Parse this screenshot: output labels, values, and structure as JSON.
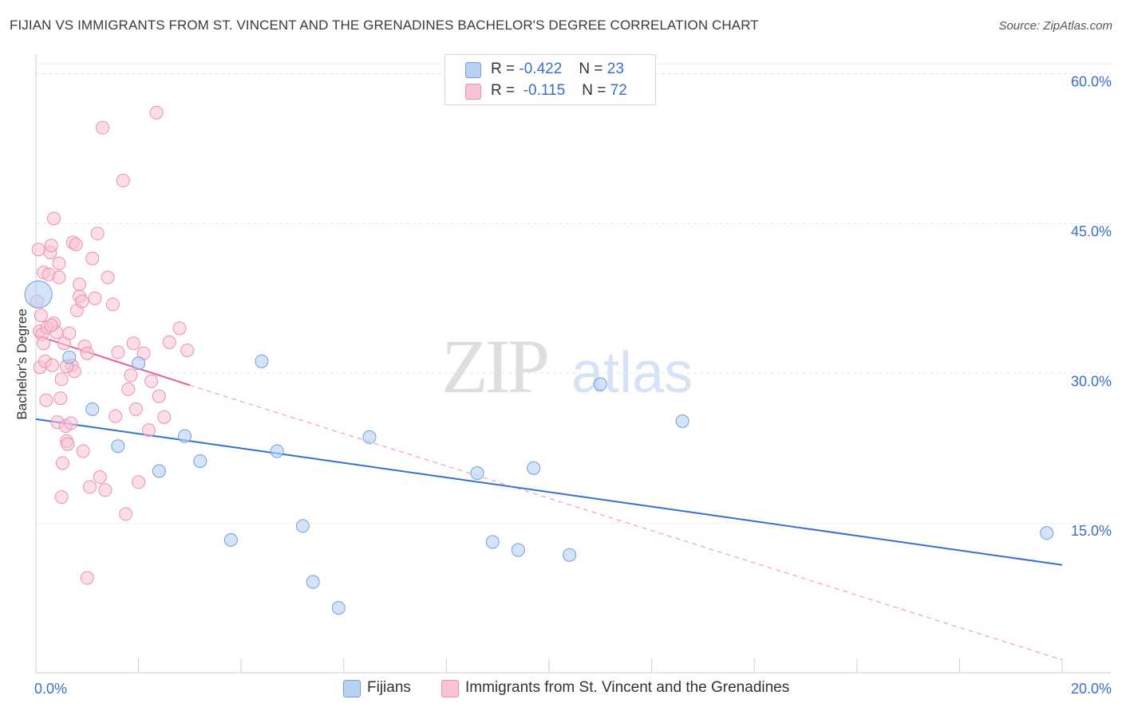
{
  "header": {
    "title": "FIJIAN VS IMMIGRANTS FROM ST. VINCENT AND THE GRENADINES BACHELOR'S DEGREE CORRELATION CHART",
    "source": "Source: ZipAtlas.com"
  },
  "legend": {
    "rows": [
      {
        "r_label": "R =",
        "r_value": "-0.422",
        "n_label": "N =",
        "n_value": "23"
      },
      {
        "r_label": "R =",
        "r_value": "-0.115",
        "n_label": "N =",
        "n_value": "72"
      }
    ]
  },
  "watermark": {
    "zip": "ZIP",
    "atlas": "atlas"
  },
  "colors": {
    "blue_fill": "#b8d0f3",
    "blue_stroke": "#6f9ee0",
    "blue_line": "#2f72d6",
    "pink_fill": "#f8c3d3",
    "pink_stroke": "#ee8fac",
    "pink_line": "#e8608d",
    "axis_label": "#3a6fc8",
    "grid": "#e6e6e6"
  },
  "chart_data": {
    "type": "scatter",
    "title": "FIJIAN VS IMMIGRANTS FROM ST. VINCENT AND THE GRENADINES BACHELOR'S DEGREE CORRELATION CHART",
    "xlabel": "",
    "ylabel": "Bachelor's Degree",
    "xlim": [
      0,
      20
    ],
    "ylim": [
      0,
      61
    ],
    "x_tick_labels": [
      "0.0%",
      "20.0%"
    ],
    "y_ticks": [
      15,
      30,
      45,
      60
    ],
    "y_tick_labels": [
      "15.0%",
      "30.0%",
      "45.0%",
      "60.0%"
    ],
    "legend_position": "bottom",
    "series": [
      {
        "name": "Fijians",
        "r": -0.422,
        "n": 23,
        "trend": {
          "x": [
            0,
            20
          ],
          "y": [
            25.4,
            10.8
          ],
          "style": "solid"
        },
        "points": [
          {
            "x": 0.05,
            "y": 37.9,
            "big": true
          },
          {
            "x": 0.65,
            "y": 31.6
          },
          {
            "x": 1.1,
            "y": 26.4
          },
          {
            "x": 1.6,
            "y": 22.7
          },
          {
            "x": 2.0,
            "y": 31.0
          },
          {
            "x": 2.4,
            "y": 20.2
          },
          {
            "x": 2.9,
            "y": 23.7
          },
          {
            "x": 3.2,
            "y": 21.2
          },
          {
            "x": 3.8,
            "y": 13.3
          },
          {
            "x": 4.4,
            "y": 31.2
          },
          {
            "x": 4.7,
            "y": 22.2
          },
          {
            "x": 5.2,
            "y": 14.7
          },
          {
            "x": 5.4,
            "y": 9.1
          },
          {
            "x": 5.9,
            "y": 6.5
          },
          {
            "x": 6.5,
            "y": 23.6
          },
          {
            "x": 8.6,
            "y": 20.0
          },
          {
            "x": 8.9,
            "y": 13.1
          },
          {
            "x": 9.4,
            "y": 12.3
          },
          {
            "x": 9.7,
            "y": 20.5
          },
          {
            "x": 10.4,
            "y": 11.8
          },
          {
            "x": 11.0,
            "y": 28.9
          },
          {
            "x": 12.6,
            "y": 25.2
          },
          {
            "x": 19.7,
            "y": 14.0
          }
        ]
      },
      {
        "name": "Immigrants from St. Vincent and the Grenadines",
        "r": -0.115,
        "n": 72,
        "trend": {
          "x": [
            0,
            3.0
          ],
          "y": [
            33.8,
            28.8
          ],
          "style": "solid",
          "extended": {
            "x": [
              3.0,
              20
            ],
            "y": [
              28.8,
              1.3
            ],
            "style": "dashed"
          }
        },
        "points": [
          {
            "x": 0.02,
            "y": 37.2
          },
          {
            "x": 0.05,
            "y": 42.4
          },
          {
            "x": 0.07,
            "y": 34.2
          },
          {
            "x": 0.08,
            "y": 30.6
          },
          {
            "x": 0.1,
            "y": 35.8
          },
          {
            "x": 0.12,
            "y": 33.9
          },
          {
            "x": 0.15,
            "y": 40.1
          },
          {
            "x": 0.18,
            "y": 31.2
          },
          {
            "x": 0.2,
            "y": 27.3
          },
          {
            "x": 0.22,
            "y": 34.6
          },
          {
            "x": 0.25,
            "y": 39.9
          },
          {
            "x": 0.28,
            "y": 42.1
          },
          {
            "x": 0.3,
            "y": 42.8
          },
          {
            "x": 0.32,
            "y": 30.8
          },
          {
            "x": 0.35,
            "y": 35.0
          },
          {
            "x": 0.35,
            "y": 45.5
          },
          {
            "x": 0.4,
            "y": 34.1
          },
          {
            "x": 0.42,
            "y": 25.1
          },
          {
            "x": 0.45,
            "y": 41.0
          },
          {
            "x": 0.48,
            "y": 27.5
          },
          {
            "x": 0.5,
            "y": 29.4
          },
          {
            "x": 0.5,
            "y": 17.6
          },
          {
            "x": 0.52,
            "y": 21.0
          },
          {
            "x": 0.55,
            "y": 33.0
          },
          {
            "x": 0.58,
            "y": 24.7
          },
          {
            "x": 0.6,
            "y": 23.2
          },
          {
            "x": 0.62,
            "y": 22.9
          },
          {
            "x": 0.65,
            "y": 34.0
          },
          {
            "x": 0.7,
            "y": 30.8
          },
          {
            "x": 0.72,
            "y": 43.1
          },
          {
            "x": 0.75,
            "y": 30.2
          },
          {
            "x": 0.78,
            "y": 42.9
          },
          {
            "x": 0.8,
            "y": 36.3
          },
          {
            "x": 0.85,
            "y": 37.7
          },
          {
            "x": 0.85,
            "y": 38.9
          },
          {
            "x": 0.9,
            "y": 37.2
          },
          {
            "x": 0.92,
            "y": 22.2
          },
          {
            "x": 0.95,
            "y": 32.7
          },
          {
            "x": 1.0,
            "y": 32.0
          },
          {
            "x": 1.05,
            "y": 18.6
          },
          {
            "x": 1.1,
            "y": 41.5
          },
          {
            "x": 1.2,
            "y": 44.0
          },
          {
            "x": 1.25,
            "y": 19.6
          },
          {
            "x": 1.3,
            "y": 54.6
          },
          {
            "x": 1.35,
            "y": 18.3
          },
          {
            "x": 1.4,
            "y": 39.6
          },
          {
            "x": 1.5,
            "y": 36.9
          },
          {
            "x": 1.55,
            "y": 25.7
          },
          {
            "x": 1.6,
            "y": 32.1
          },
          {
            "x": 1.7,
            "y": 49.3
          },
          {
            "x": 1.75,
            "y": 15.9
          },
          {
            "x": 1.8,
            "y": 28.4
          },
          {
            "x": 1.85,
            "y": 29.8
          },
          {
            "x": 1.9,
            "y": 33.0
          },
          {
            "x": 1.95,
            "y": 26.4
          },
          {
            "x": 2.0,
            "y": 19.1
          },
          {
            "x": 2.1,
            "y": 32.0
          },
          {
            "x": 2.2,
            "y": 24.3
          },
          {
            "x": 2.25,
            "y": 29.2
          },
          {
            "x": 2.35,
            "y": 56.1
          },
          {
            "x": 2.4,
            "y": 27.7
          },
          {
            "x": 2.5,
            "y": 25.6
          },
          {
            "x": 2.6,
            "y": 33.1
          },
          {
            "x": 2.8,
            "y": 34.5
          },
          {
            "x": 2.95,
            "y": 32.3
          },
          {
            "x": 1.0,
            "y": 9.5
          },
          {
            "x": 0.3,
            "y": 34.8
          },
          {
            "x": 0.6,
            "y": 30.7
          },
          {
            "x": 0.45,
            "y": 39.6
          },
          {
            "x": 0.68,
            "y": 25.0
          },
          {
            "x": 0.15,
            "y": 33.0
          },
          {
            "x": 1.15,
            "y": 37.5
          }
        ]
      }
    ]
  }
}
